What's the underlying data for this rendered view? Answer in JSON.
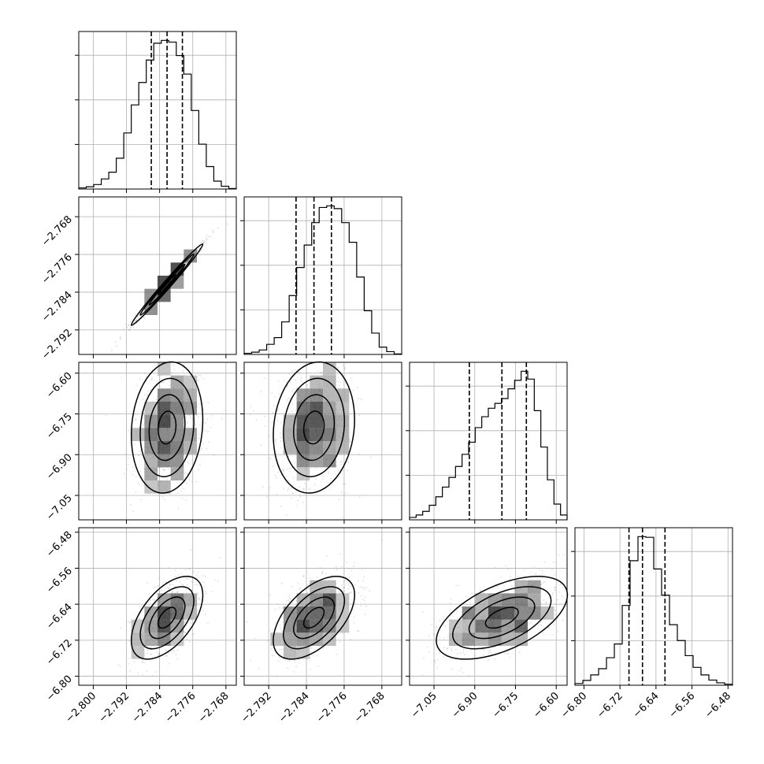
{
  "chart_data": {
    "type": "corner",
    "params": [
      {
        "range": [
          -2.8035,
          -2.7655
        ],
        "ticks": [
          -2.8,
          -2.792,
          -2.784,
          -2.776,
          -2.768
        ],
        "tick_labels": [
          "−2.800",
          "−2.792",
          "−2.784",
          "−2.776",
          "−2.768"
        ]
      },
      {
        "range": [
          -2.7972,
          -2.7638
        ],
        "ticks": [
          -2.792,
          -2.784,
          -2.776,
          -2.768
        ],
        "tick_labels": [
          "−2.792",
          "−2.784",
          "−2.776",
          "−2.768"
        ]
      },
      {
        "range": [
          -7.14,
          -6.56
        ],
        "ticks": [
          -7.05,
          -6.9,
          -6.75,
          -6.6
        ],
        "tick_labels": [
          "−7.05",
          "−6.90",
          "−6.75",
          "−6.60"
        ]
      },
      {
        "range": [
          -6.82,
          -6.47
        ],
        "ticks": [
          -6.8,
          -6.72,
          -6.64,
          -6.56,
          -6.48
        ],
        "tick_labels": [
          "−6.80",
          "−6.72",
          "−6.64",
          "−6.56",
          "−6.48"
        ]
      }
    ],
    "quantiles": [
      [
        -2.786,
        -2.7822,
        -2.7785
      ],
      [
        -2.7862,
        -2.7824,
        -2.7787
      ],
      [
        -6.92,
        -6.8,
        -6.71
      ],
      [
        -6.7,
        -6.67,
        -6.62
      ]
    ],
    "histograms": [
      [
        2,
        4,
        8,
        18,
        30,
        55,
        100,
        150,
        190,
        230,
        260,
        265,
        262,
        238,
        205,
        140,
        80,
        40,
        14,
        5,
        1
      ],
      [
        2,
        4,
        8,
        18,
        30,
        58,
        105,
        155,
        195,
        235,
        262,
        265,
        260,
        235,
        200,
        138,
        78,
        38,
        13,
        5,
        1
      ],
      [
        4,
        8,
        14,
        24,
        38,
        54,
        70,
        88,
        108,
        128,
        152,
        170,
        184,
        192,
        200,
        216,
        230,
        245,
        232,
        180,
        120,
        66,
        26,
        8
      ],
      [
        5,
        14,
        30,
        48,
        80,
        120,
        232,
        362,
        432,
        430,
        338,
        262,
        176,
        130,
        86,
        52,
        30,
        15,
        7,
        3
      ]
    ],
    "correlations": [
      [
        1.0,
        0.99,
        0.12,
        0.55
      ],
      [
        0.99,
        1.0,
        0.12,
        0.55
      ],
      [
        0.12,
        0.12,
        1.0,
        0.55
      ],
      [
        0.55,
        0.55,
        0.55,
        1.0
      ]
    ],
    "grid": true,
    "colors": {
      "line": "#000000",
      "points": "#808080",
      "grid": "#b0b0b0"
    }
  }
}
